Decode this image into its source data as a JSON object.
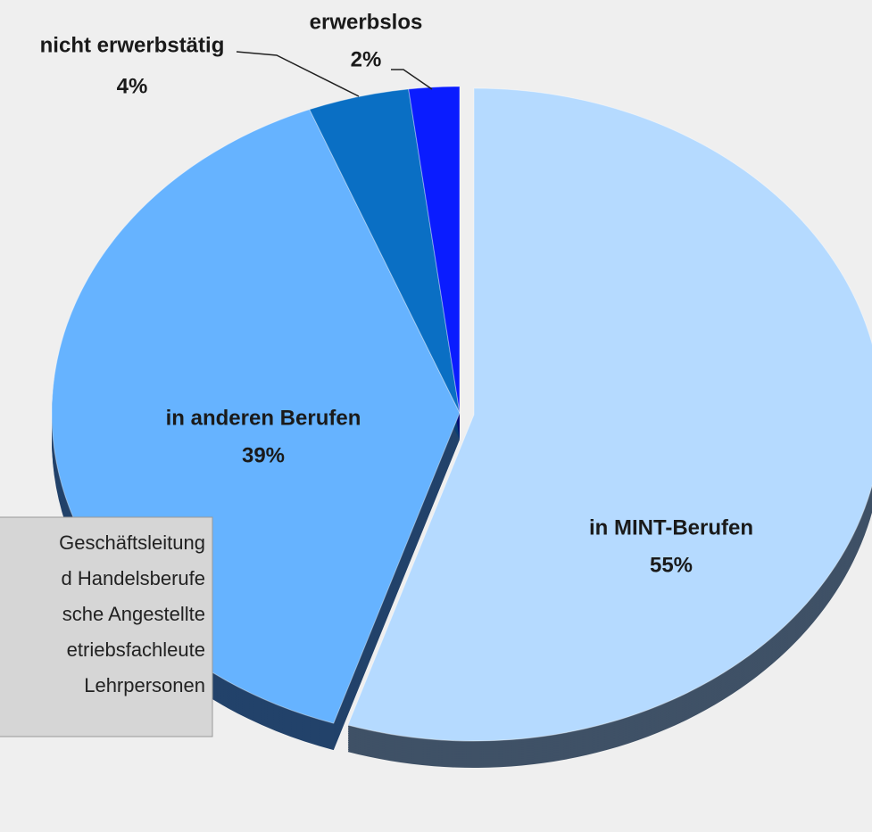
{
  "chart_data": {
    "type": "pie",
    "categories": [
      "in MINT-Berufen",
      "in anderen Berufen",
      "nicht erwerbstätig",
      "erwerbslos"
    ],
    "values": [
      55,
      39,
      4,
      2
    ],
    "value_labels": [
      "55%",
      "39%",
      "4%",
      "2%"
    ],
    "colors": [
      "#b5daff",
      "#66b3ff",
      "#0a6fc4",
      "#0a1cff"
    ],
    "annotation": [
      "Geschäftsleitung",
      "d Handelsberufe",
      "sche Angestellte",
      "etriebsfachleute",
      "Lehrpersonen"
    ]
  }
}
